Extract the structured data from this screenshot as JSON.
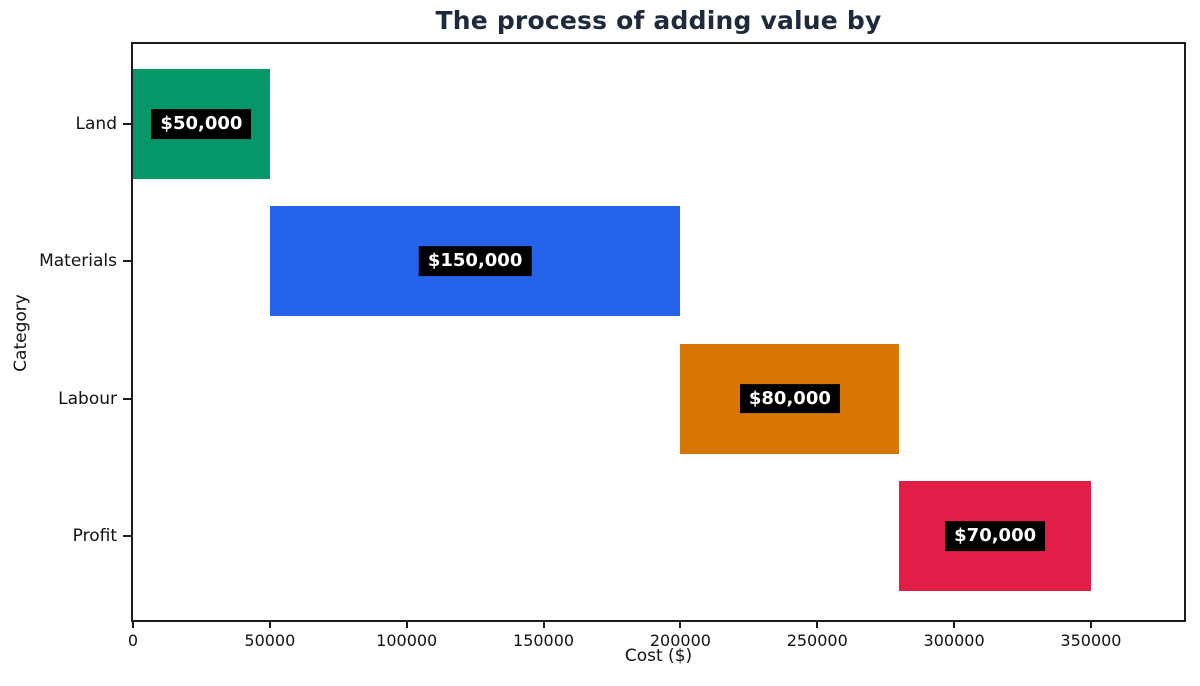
{
  "chart_data": {
    "type": "bar",
    "orientation": "horizontal",
    "variant": "waterfall",
    "title": "The process of adding value by",
    "xlabel": "Cost ($)",
    "ylabel": "Category",
    "categories": [
      "Land",
      "Materials",
      "Labour",
      "Profit"
    ],
    "starts": [
      0,
      50000,
      200000,
      280000
    ],
    "values": [
      50000,
      150000,
      80000,
      70000
    ],
    "value_labels": [
      "$50,000",
      "$150,000",
      "$80,000",
      "$70,000"
    ],
    "bar_colors": [
      "#059669",
      "#2563eb",
      "#d97706",
      "#e11d48"
    ],
    "x_ticks": [
      0,
      50000,
      100000,
      150000,
      200000,
      250000,
      300000,
      350000
    ],
    "x_tick_labels": [
      "0",
      "50000",
      "100000",
      "150000",
      "200000",
      "250000",
      "300000",
      "350000"
    ],
    "xlim": [
      0,
      384000
    ],
    "grid": false,
    "legend": "none",
    "title_color": "#1e293b",
    "value_label_text_color": "#ffffff",
    "value_label_bg_color": "#000000"
  }
}
